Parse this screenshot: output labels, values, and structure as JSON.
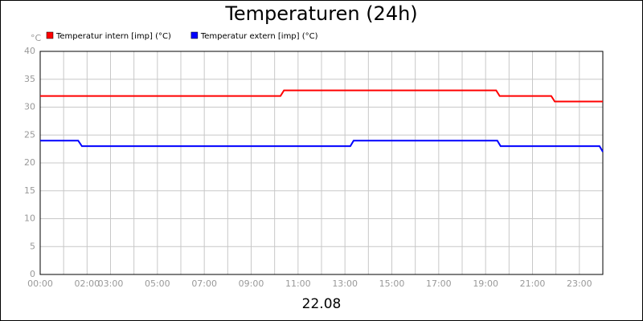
{
  "chart_data": {
    "type": "line",
    "title": "Temperaturen (24h)",
    "y_unit": "°C",
    "xlabel": "22.08",
    "series": [
      {
        "name": "Temperatur intern [imp] (°C)",
        "color": "#ff0000",
        "x": [
          0,
          10.25,
          10.4,
          19.45,
          19.6,
          21.8,
          21.95,
          24
        ],
        "values": [
          32,
          32,
          33,
          33,
          32,
          32,
          31,
          31
        ]
      },
      {
        "name": "Temperatur extern [imp] (°C)",
        "color": "#0000ff",
        "x": [
          0,
          1.62,
          1.78,
          13.23,
          13.37,
          19.5,
          19.64,
          23.86,
          24
        ],
        "values": [
          24,
          24,
          23,
          23,
          24,
          24,
          23,
          23,
          22
        ]
      }
    ],
    "xlim": [
      0,
      24
    ],
    "xticks": [
      {
        "value": 0,
        "label": "00:00"
      },
      {
        "value": 2,
        "label": "02:00"
      },
      {
        "value": 3,
        "label": "03:00"
      },
      {
        "value": 5,
        "label": "05:00"
      },
      {
        "value": 7,
        "label": "07:00"
      },
      {
        "value": 9,
        "label": "09:00"
      },
      {
        "value": 11,
        "label": "11:00"
      },
      {
        "value": 13,
        "label": "13:00"
      },
      {
        "value": 15,
        "label": "15:00"
      },
      {
        "value": 17,
        "label": "17:00"
      },
      {
        "value": 19,
        "label": "19:00"
      },
      {
        "value": 21,
        "label": "21:00"
      },
      {
        "value": 23,
        "label": "23:00"
      }
    ],
    "xminorticks": [
      1,
      4,
      6,
      8,
      10,
      12,
      14,
      16,
      18,
      20,
      22,
      24
    ],
    "ylim": [
      0,
      40
    ],
    "yticks": [
      0,
      5,
      10,
      15,
      20,
      25,
      30,
      35,
      40
    ],
    "grid": true
  }
}
